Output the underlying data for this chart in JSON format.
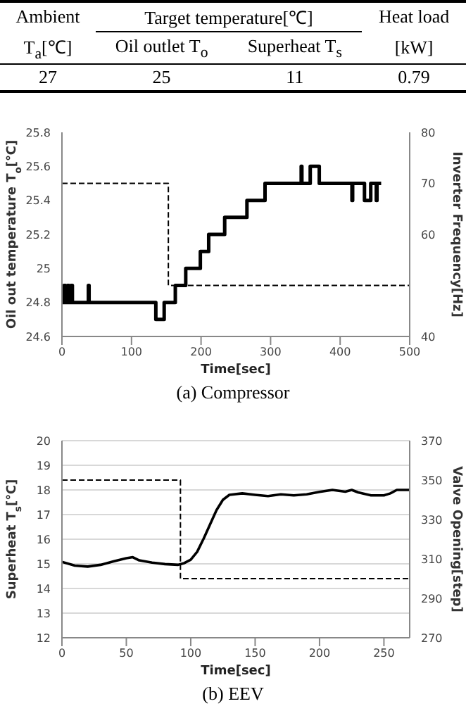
{
  "chart_data": [
    {
      "type": "other",
      "annotations": [
        "Ambient",
        "T$_{a}$[℃]",
        "Target temperature[℃]",
        "Oil outlet  T$_{o}$",
        "Superheat  T$_{s}$",
        "Heat load",
        "[kW]",
        "27",
        "25",
        "11",
        "0.79"
      ]
    },
    {
      "type": "step",
      "title": "(a)  Compressor",
      "xlabel": "Time[sec]",
      "ylabel": "Oil out temperature T$_{o}$[℃]",
      "y2label": "Inverter Frequency[Hz]",
      "xlim": [
        0,
        500
      ],
      "xticks": [
        0,
        100,
        200,
        300,
        400,
        500
      ],
      "ylim": [
        24.6,
        25.8
      ],
      "yticks": [
        24.6,
        24.8,
        25,
        25.2,
        25.4,
        25.6,
        25.8
      ],
      "y2lim": [
        40,
        80
      ],
      "y2ticks": [
        40,
        60,
        70,
        80
      ],
      "grid": false,
      "series": [
        {
          "color": "#000000",
          "x": [
            0,
            3,
            5,
            8,
            10,
            13,
            15,
            38,
            39,
            135,
            147,
            163,
            178,
            199,
            211,
            234,
            266,
            292,
            344,
            345,
            357,
            370,
            417,
            418,
            435,
            444,
            452,
            453,
            459
          ],
          "values": [
            24.8,
            24.9,
            24.8,
            24.9,
            24.8,
            24.9,
            24.8,
            24.9,
            24.8,
            24.7,
            24.8,
            24.9,
            25.0,
            25.1,
            25.2,
            25.3,
            25.4,
            25.5,
            25.6,
            25.5,
            25.6,
            25.5,
            25.4,
            25.5,
            25.4,
            25.5,
            25.4,
            25.5,
            25.5
          ]
        },
        {
          "color": "#000000",
          "axis": "y2",
          "line_style": "dashed",
          "x": [
            0,
            153,
            500
          ],
          "values": [
            70,
            50,
            50
          ]
        }
      ]
    },
    {
      "type": "line",
      "title": "(b)  EEV",
      "xlabel": "Time[sec]",
      "ylabel": "Superheat T$_{s}$[℃]",
      "y2label": "Valve Opening[step]",
      "xlim": [
        0,
        270
      ],
      "xticks": [
        0,
        50,
        100,
        150,
        200,
        250
      ],
      "ylim": [
        12,
        20
      ],
      "yticks": [
        12,
        13,
        14,
        15,
        16,
        17,
        18,
        19,
        20
      ],
      "y2lim": [
        270,
        370
      ],
      "y2ticks": [
        270,
        290,
        310,
        330,
        350,
        370
      ],
      "grid": "y",
      "series": [
        {
          "color": "#000000",
          "x": [
            0,
            10,
            20,
            30,
            40,
            50,
            55,
            60,
            70,
            80,
            90,
            95,
            100,
            105,
            110,
            115,
            120,
            125,
            130,
            140,
            150,
            160,
            170,
            180,
            190,
            200,
            210,
            220,
            225,
            230,
            240,
            250,
            255,
            260,
            270
          ],
          "values": [
            15.08,
            14.93,
            14.89,
            14.96,
            15.1,
            15.23,
            15.27,
            15.14,
            15.05,
            14.99,
            14.96,
            15.03,
            15.17,
            15.49,
            16.02,
            16.6,
            17.18,
            17.6,
            17.8,
            17.86,
            17.8,
            17.75,
            17.82,
            17.78,
            17.82,
            17.92,
            18.0,
            17.93,
            18.0,
            17.9,
            17.78,
            17.78,
            17.86,
            18.0,
            18.0
          ]
        },
        {
          "color": "#000000",
          "axis": "y2",
          "line_style": "dashed",
          "type": "step",
          "x": [
            0,
            92,
            270
          ],
          "values": [
            350,
            300,
            300
          ]
        }
      ]
    }
  ]
}
